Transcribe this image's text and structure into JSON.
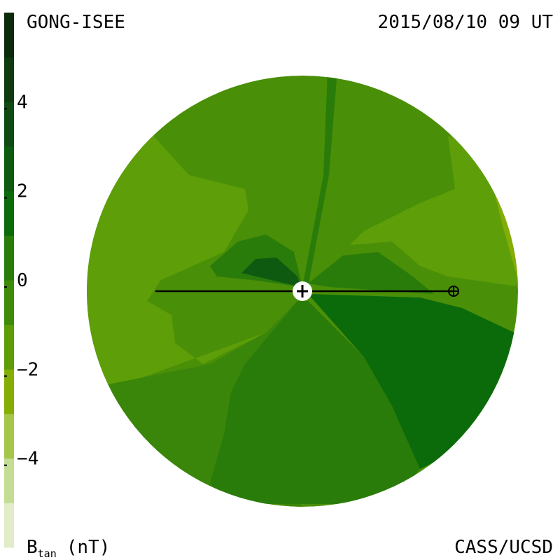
{
  "header": {
    "title": "GONG-ISEE",
    "timestamp": "2015/08/10 09 UT"
  },
  "footer": {
    "credit": "CASS/UCSD"
  },
  "colorbar": {
    "label": {
      "symbol": "B",
      "subscript": "tan",
      "unit": "(nT)"
    },
    "lim": [
      -6,
      6
    ],
    "ticks": [
      {
        "value": -4,
        "label": "−4"
      },
      {
        "value": -2,
        "label": "−2"
      },
      0,
      2,
      4
    ],
    "colors": [
      "#e2ecc9",
      "#c4dc94",
      "#a6c64a",
      "#84ad06",
      "#5e9c08",
      "#3f8a0a",
      "#2a7c0a",
      "#0b6b0b",
      "#0d5a10",
      "#0f4a12",
      "#0f3a10",
      "#0b2a0c"
    ]
  }
}
